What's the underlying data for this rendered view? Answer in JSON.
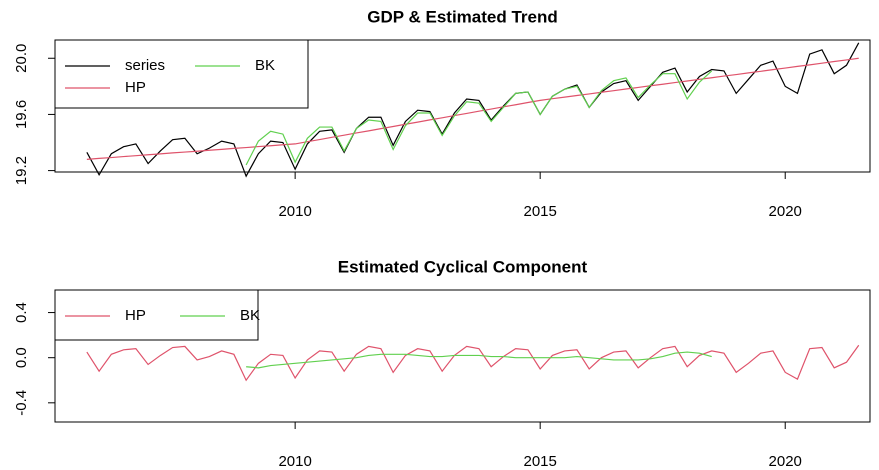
{
  "chart_data": [
    {
      "type": "line",
      "title": "GDP & Estimated Trend",
      "legend": "topleft",
      "x": [
        2005.75,
        2006,
        2006.25,
        2006.5,
        2006.75,
        2007,
        2007.25,
        2007.5,
        2007.75,
        2008,
        2008.25,
        2008.5,
        2008.75,
        2009,
        2009.25,
        2009.5,
        2009.75,
        2010,
        2010.25,
        2010.5,
        2010.75,
        2011,
        2011.25,
        2011.5,
        2011.75,
        2012,
        2012.25,
        2012.5,
        2012.75,
        2013,
        2013.25,
        2013.5,
        2013.75,
        2014,
        2014.25,
        2014.5,
        2014.75,
        2015,
        2015.25,
        2015.5,
        2015.75,
        2016,
        2016.25,
        2016.5,
        2016.75,
        2017,
        2017.25,
        2017.5,
        2017.75,
        2018,
        2018.25,
        2018.5,
        2018.75,
        2019,
        2019.25,
        2019.5,
        2019.75,
        2020,
        2020.25,
        2020.5,
        2020.75,
        2021,
        2021.25,
        2021.5
      ],
      "xlim": [
        2005.1,
        2021.73
      ],
      "xticks": [
        2010,
        2015,
        2020
      ],
      "ylim": [
        19.19,
        20.13
      ],
      "yticks": [
        19.2,
        19.6,
        {
          "value": 20,
          "label": "20.0"
        }
      ],
      "series": [
        {
          "name": "series",
          "color": "#000000",
          "values": [
            19.33,
            19.17,
            19.32,
            19.37,
            19.39,
            19.25,
            19.34,
            19.42,
            19.43,
            19.32,
            19.36,
            19.41,
            19.39,
            19.16,
            19.32,
            19.41,
            19.4,
            19.21,
            19.39,
            19.48,
            19.49,
            19.33,
            19.5,
            19.58,
            19.58,
            19.38,
            19.55,
            19.63,
            19.62,
            19.46,
            19.61,
            19.71,
            19.7,
            19.56,
            19.66,
            19.75,
            19.76,
            19.6,
            19.73,
            19.78,
            19.81,
            19.65,
            19.76,
            19.82,
            19.84,
            19.7,
            19.8,
            19.9,
            19.93,
            19.76,
            19.87,
            19.92,
            19.91,
            19.75,
            19.85,
            19.95,
            19.98,
            19.8,
            19.75,
            20.03,
            20.06,
            19.89,
            19.95,
            20.11
          ]
        },
        {
          "name": "HP",
          "color": "#DF536B",
          "values": [
            19.28,
            19.287,
            19.293,
            19.3,
            19.306,
            19.313,
            19.319,
            19.326,
            19.332,
            19.338,
            19.345,
            19.351,
            19.358,
            19.364,
            19.371,
            19.377,
            19.384,
            19.39,
            19.406,
            19.421,
            19.437,
            19.452,
            19.468,
            19.483,
            19.499,
            19.514,
            19.53,
            19.545,
            19.561,
            19.576,
            19.592,
            19.607,
            19.623,
            19.638,
            19.654,
            19.669,
            19.685,
            19.7,
            19.712,
            19.723,
            19.735,
            19.746,
            19.758,
            19.769,
            19.781,
            19.792,
            19.804,
            19.815,
            19.827,
            19.838,
            19.85,
            19.861,
            19.873,
            19.884,
            19.896,
            19.907,
            19.919,
            19.93,
            19.942,
            19.953,
            19.965,
            19.977,
            19.988,
            20.0
          ]
        },
        {
          "name": "BK",
          "color": "#61D04F",
          "values": [
            null,
            null,
            null,
            null,
            null,
            null,
            null,
            null,
            null,
            null,
            null,
            null,
            null,
            19.24,
            19.41,
            19.48,
            19.46,
            19.26,
            19.43,
            19.51,
            19.51,
            19.34,
            19.5,
            19.56,
            19.55,
            19.35,
            19.52,
            19.61,
            19.61,
            19.45,
            19.59,
            19.69,
            19.68,
            19.55,
            19.65,
            19.75,
            19.76,
            19.6,
            19.73,
            19.78,
            19.8,
            19.65,
            19.77,
            19.84,
            19.86,
            19.72,
            19.81,
            19.89,
            19.89,
            19.71,
            19.83,
            19.91,
            null,
            null,
            null,
            null,
            null,
            null,
            null,
            null,
            null,
            null,
            null,
            null
          ]
        }
      ]
    },
    {
      "type": "line",
      "title": "Estimated Cyclical Component",
      "legend": "topleft",
      "x": [
        2005.75,
        2006,
        2006.25,
        2006.5,
        2006.75,
        2007,
        2007.25,
        2007.5,
        2007.75,
        2008,
        2008.25,
        2008.5,
        2008.75,
        2009,
        2009.25,
        2009.5,
        2009.75,
        2010,
        2010.25,
        2010.5,
        2010.75,
        2011,
        2011.25,
        2011.5,
        2011.75,
        2012,
        2012.25,
        2012.5,
        2012.75,
        2013,
        2013.25,
        2013.5,
        2013.75,
        2014,
        2014.25,
        2014.5,
        2014.75,
        2015,
        2015.25,
        2015.5,
        2015.75,
        2016,
        2016.25,
        2016.5,
        2016.75,
        2017,
        2017.25,
        2017.5,
        2017.75,
        2018,
        2018.25,
        2018.5,
        2018.75,
        2019,
        2019.25,
        2019.5,
        2019.75,
        2020,
        2020.25,
        2020.5,
        2020.75,
        2021,
        2021.25,
        2021.5
      ],
      "xlim": [
        2005.1,
        2021.73
      ],
      "xticks": [
        2010,
        2015,
        2020
      ],
      "ylim": [
        -0.57,
        0.6
      ],
      "yticks": [
        -0.4,
        {
          "value": 0,
          "label": "0.0"
        },
        0.4
      ],
      "series": [
        {
          "name": "HP",
          "color": "#DF536B",
          "values": [
            0.05,
            -0.12,
            0.03,
            0.07,
            0.08,
            -0.06,
            0.02,
            0.09,
            0.1,
            -0.02,
            0.01,
            0.06,
            0.03,
            -0.2,
            -0.05,
            0.03,
            0.02,
            -0.18,
            -0.02,
            0.06,
            0.05,
            -0.12,
            0.03,
            0.1,
            0.08,
            -0.13,
            0.02,
            0.08,
            0.06,
            -0.12,
            0.02,
            0.1,
            0.08,
            -0.08,
            0.01,
            0.08,
            0.07,
            -0.1,
            0.02,
            0.06,
            0.07,
            -0.1,
            0.0,
            0.05,
            0.06,
            -0.09,
            0.0,
            0.08,
            0.1,
            -0.08,
            0.02,
            0.06,
            0.04,
            -0.13,
            -0.05,
            0.04,
            0.06,
            -0.13,
            -0.19,
            0.08,
            0.09,
            -0.09,
            -0.04,
            0.11
          ]
        },
        {
          "name": "BK",
          "color": "#61D04F",
          "values": [
            null,
            null,
            null,
            null,
            null,
            null,
            null,
            null,
            null,
            null,
            null,
            null,
            null,
            -0.08,
            -0.09,
            -0.07,
            -0.06,
            -0.05,
            -0.04,
            -0.03,
            -0.02,
            -0.01,
            0.0,
            0.02,
            0.03,
            0.03,
            0.03,
            0.02,
            0.01,
            0.01,
            0.02,
            0.02,
            0.02,
            0.01,
            0.01,
            0.0,
            0.0,
            0.0,
            0.0,
            0.0,
            0.01,
            0.0,
            -0.01,
            -0.02,
            -0.02,
            -0.02,
            -0.01,
            0.01,
            0.04,
            0.05,
            0.04,
            0.01,
            null,
            null,
            null,
            null,
            null,
            null,
            null,
            null,
            null,
            null,
            null,
            null
          ]
        }
      ]
    }
  ]
}
